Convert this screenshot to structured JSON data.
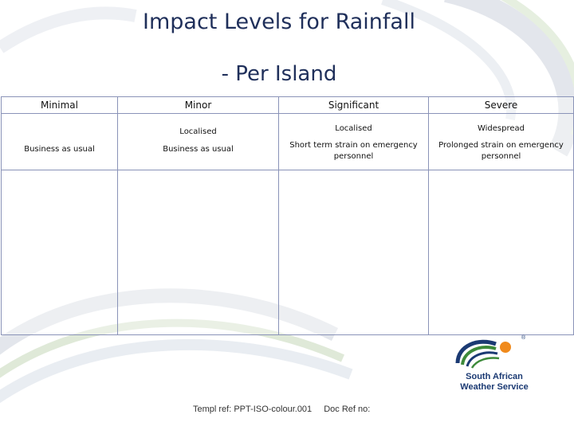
{
  "title": {
    "line1": "Impact Levels for Rainfall",
    "line2": "- Per Island"
  },
  "table": {
    "headers": [
      "Minimal",
      "Minor",
      "Significant",
      "Severe"
    ],
    "rows": [
      {
        "minimal": "Business as usual",
        "minor_top": "Localised",
        "minor_bottom": "Business as usual",
        "significant_top": "Localised",
        "significant_bottom": "Short term strain on emergency personnel",
        "severe_top": "Widespread",
        "severe_bottom": "Prolonged strain on emergency personnel"
      }
    ]
  },
  "footer": {
    "template_ref": "Templ ref: PPT-ISO-colour.001",
    "doc_ref": "Doc Ref no:"
  },
  "logo": {
    "line1": "South African",
    "line2": "Weather Service",
    "registered_mark": "®"
  },
  "colors": {
    "title": "#1f2f5a",
    "table_border": "#8a93b8",
    "logo_blue": "#1b3a73",
    "logo_green": "#3d8a3a",
    "logo_orange": "#f08a1c"
  }
}
